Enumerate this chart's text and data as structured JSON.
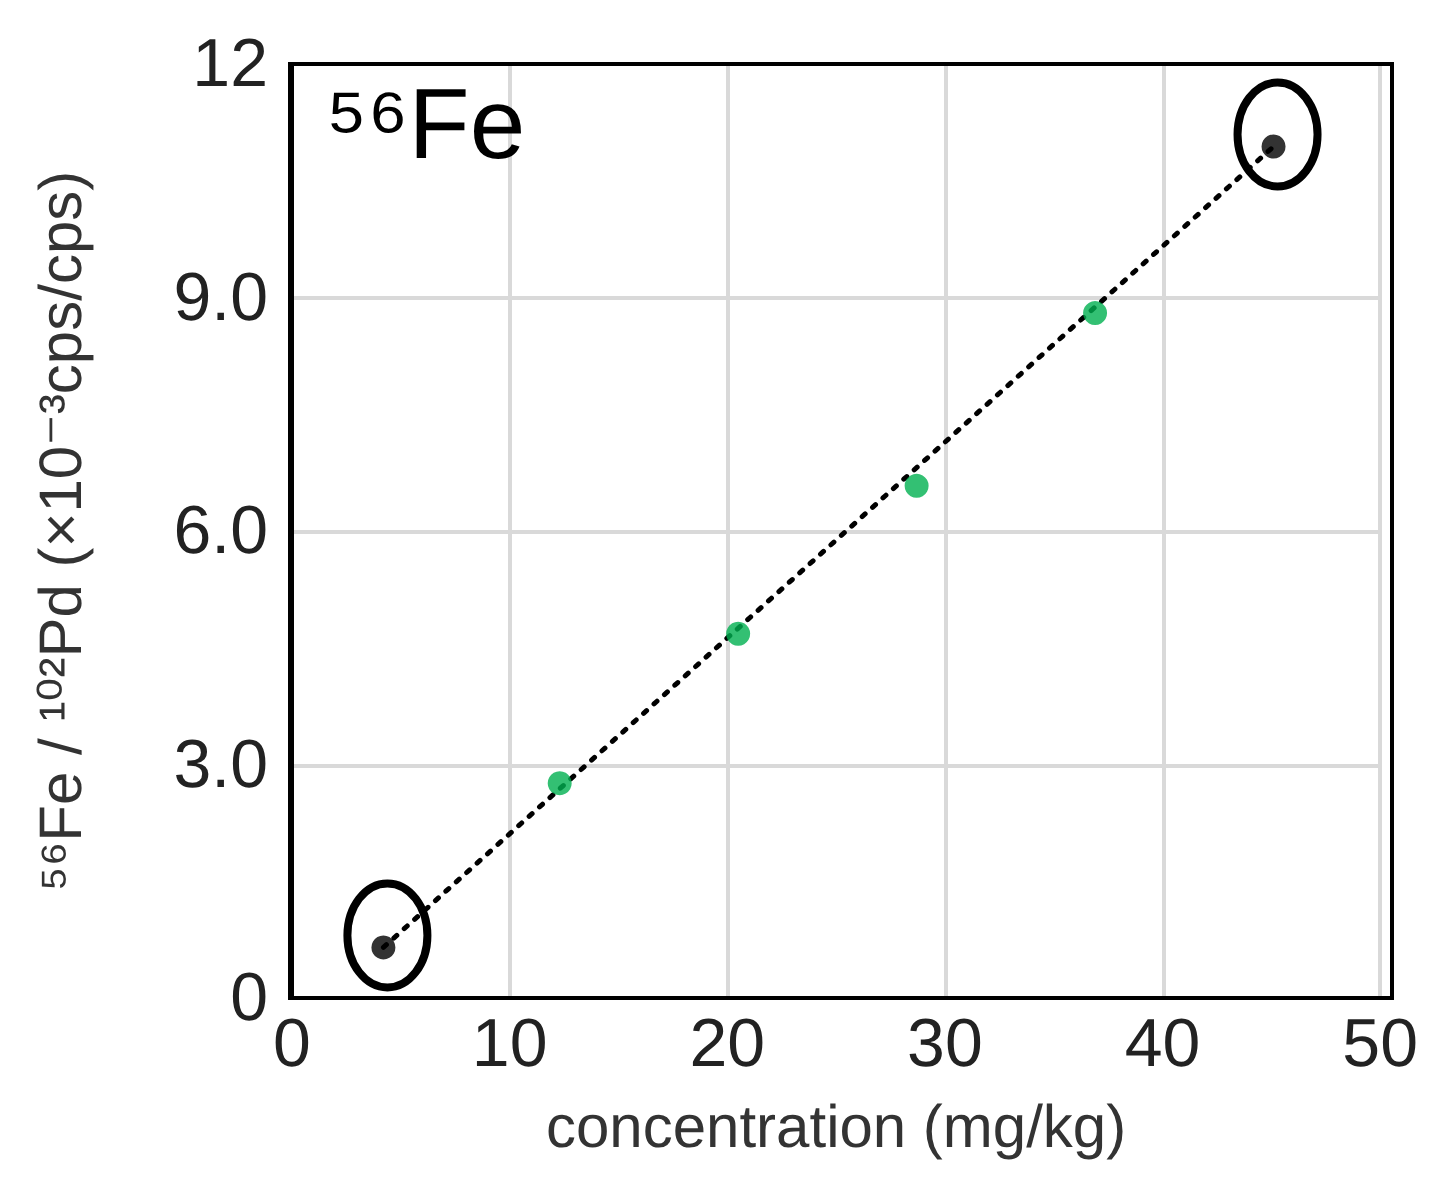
{
  "chart_data": {
    "type": "scatter",
    "title": "⁵⁶Fe",
    "xlabel": "concentration (mg/kg)",
    "ylabel": "⁵⁶Fe / ¹⁰²Pd (×10⁻³cps/cps)",
    "series": [
      {
        "color": "#00b050",
        "x": [
          12.3,
          20.5,
          28.7,
          36.9
        ],
        "values": [
          2.76,
          4.68,
          6.58,
          8.8
        ]
      },
      {
        "color": "#000000",
        "x": [
          4.2,
          45.1
        ],
        "values": [
          0.65,
          10.94
        ]
      },
      {
        "type": "line",
        "color": "#000000",
        "line_style": "dotted",
        "marker": "none",
        "x": [
          4.2,
          45.1
        ],
        "values": [
          0.65,
          10.94
        ]
      }
    ],
    "xlim": [
      0,
      50
    ],
    "xticks": [
      0,
      10,
      20,
      30,
      40,
      50
    ],
    "ylim": [
      0,
      12
    ],
    "yticks": [
      0,
      {
        "value": 3,
        "label": "3.0"
      },
      {
        "value": 6,
        "label": "6.0"
      },
      {
        "value": 9,
        "label": "9.0"
      },
      12
    ],
    "grid": true,
    "marker": "circle"
  }
}
